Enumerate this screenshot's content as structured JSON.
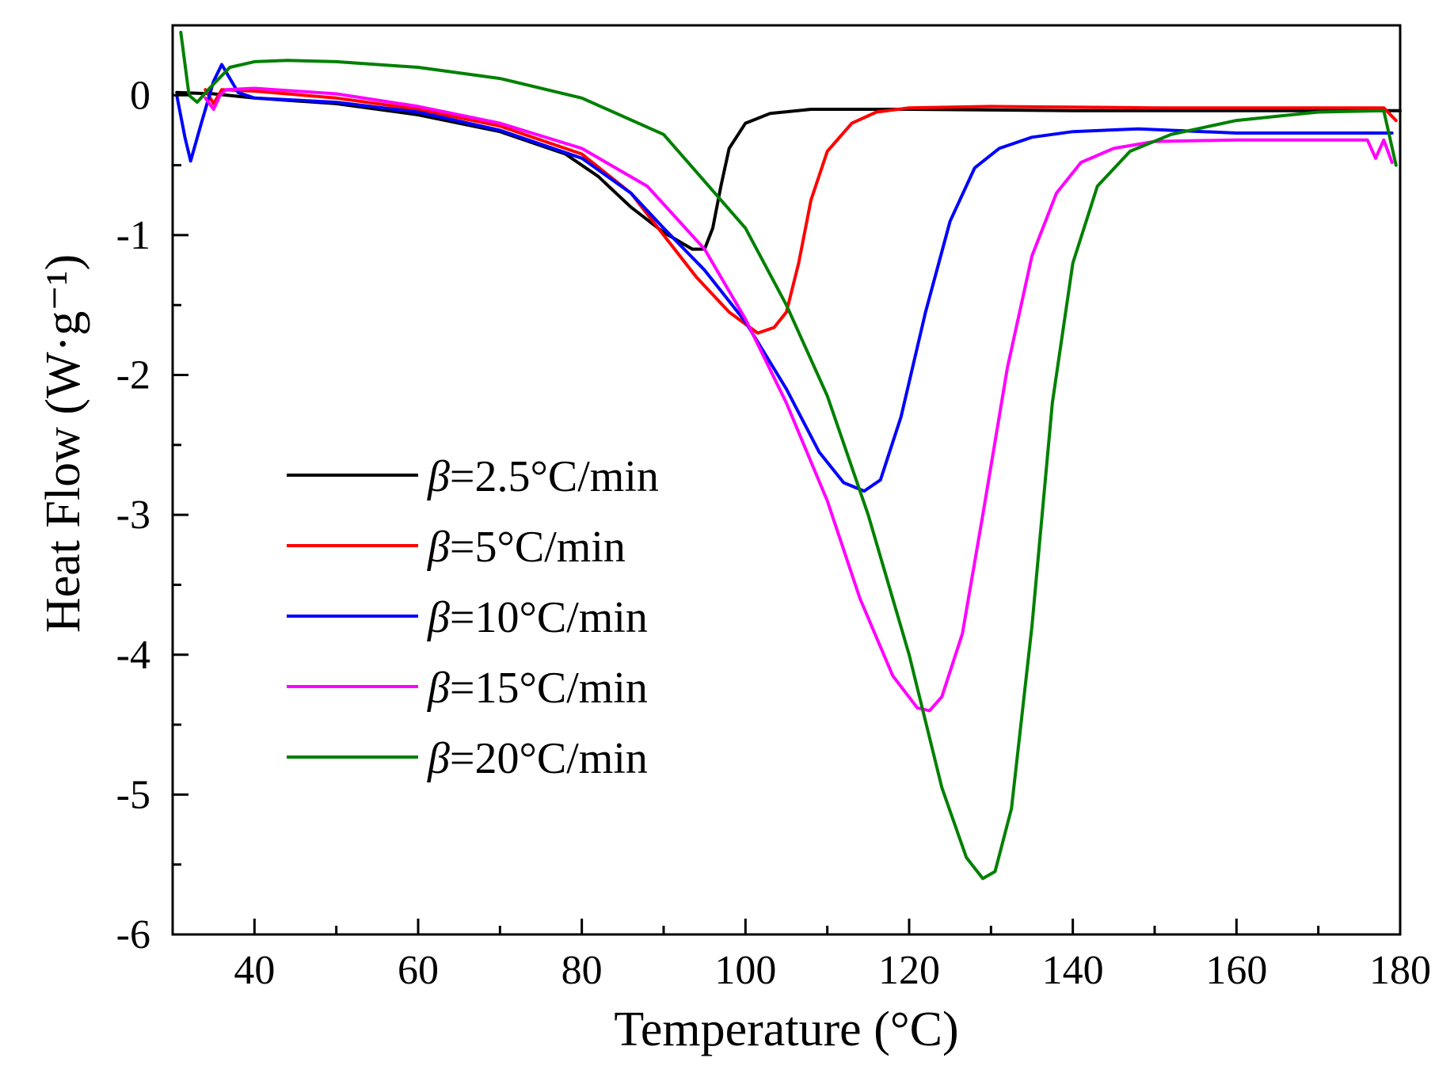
{
  "chart_data": {
    "type": "line",
    "title": "",
    "xlabel": "Temperature (°C)",
    "ylabel": "Heat Flow (W·g⁻¹)",
    "xlim": [
      30,
      180
    ],
    "ylim": [
      -6,
      0.5
    ],
    "xticks": [
      40,
      60,
      80,
      100,
      120,
      140,
      160,
      180
    ],
    "yticks": [
      0,
      -1,
      -2,
      -3,
      -4,
      -5,
      -6
    ],
    "xtick_labels": [
      "40",
      "60",
      "80",
      "100",
      "120",
      "140",
      "160",
      "180"
    ],
    "ytick_labels": [
      "0",
      "-1",
      "-2",
      "-3",
      "-4",
      "-5",
      "-6"
    ],
    "grid": false,
    "legend_position": "center-left",
    "series": [
      {
        "name": "β=2.5°C/min",
        "symbol": "β",
        "label": "=2.5°C/min",
        "color": "#000000",
        "points": [
          [
            30.5,
            0.02
          ],
          [
            35,
            0.01
          ],
          [
            40,
            -0.02
          ],
          [
            50,
            -0.06
          ],
          [
            60,
            -0.14
          ],
          [
            70,
            -0.26
          ],
          [
            78,
            -0.42
          ],
          [
            82,
            -0.58
          ],
          [
            86,
            -0.8
          ],
          [
            90,
            -0.98
          ],
          [
            93.5,
            -1.1
          ],
          [
            95,
            -1.1
          ],
          [
            96,
            -0.95
          ],
          [
            97,
            -0.65
          ],
          [
            98,
            -0.38
          ],
          [
            100,
            -0.2
          ],
          [
            103,
            -0.13
          ],
          [
            108,
            -0.1
          ],
          [
            120,
            -0.1
          ],
          [
            140,
            -0.11
          ],
          [
            180,
            -0.11
          ]
        ]
      },
      {
        "name": "β=5°C/min",
        "symbol": "β",
        "label": "=5°C/min",
        "color": "#ff0000",
        "points": [
          [
            34,
            0.04
          ],
          [
            35,
            -0.06
          ],
          [
            36,
            0.04
          ],
          [
            40,
            0.03
          ],
          [
            50,
            -0.02
          ],
          [
            60,
            -0.1
          ],
          [
            70,
            -0.22
          ],
          [
            80,
            -0.42
          ],
          [
            86,
            -0.7
          ],
          [
            90,
            -1.0
          ],
          [
            94,
            -1.3
          ],
          [
            98,
            -1.55
          ],
          [
            101.5,
            -1.7
          ],
          [
            103.5,
            -1.66
          ],
          [
            105,
            -1.55
          ],
          [
            106.5,
            -1.2
          ],
          [
            108,
            -0.75
          ],
          [
            110,
            -0.4
          ],
          [
            113,
            -0.2
          ],
          [
            116,
            -0.12
          ],
          [
            120,
            -0.09
          ],
          [
            130,
            -0.08
          ],
          [
            150,
            -0.09
          ],
          [
            178,
            -0.09
          ],
          [
            179.5,
            -0.18
          ]
        ]
      },
      {
        "name": "β=10°C/min",
        "symbol": "β",
        "label": "=10°C/min",
        "color": "#0000ff",
        "points": [
          [
            30.5,
            0.0
          ],
          [
            31.5,
            -0.3
          ],
          [
            32.2,
            -0.47
          ],
          [
            33.5,
            -0.2
          ],
          [
            35,
            0.1
          ],
          [
            36,
            0.22
          ],
          [
            37,
            0.12
          ],
          [
            38,
            0.02
          ],
          [
            40,
            -0.02
          ],
          [
            50,
            -0.05
          ],
          [
            60,
            -0.12
          ],
          [
            70,
            -0.25
          ],
          [
            80,
            -0.45
          ],
          [
            86,
            -0.7
          ],
          [
            90,
            -0.95
          ],
          [
            95,
            -1.25
          ],
          [
            100,
            -1.62
          ],
          [
            105,
            -2.1
          ],
          [
            109,
            -2.55
          ],
          [
            112,
            -2.77
          ],
          [
            114.5,
            -2.83
          ],
          [
            116.5,
            -2.75
          ],
          [
            119,
            -2.3
          ],
          [
            122,
            -1.55
          ],
          [
            125,
            -0.9
          ],
          [
            128,
            -0.52
          ],
          [
            131,
            -0.38
          ],
          [
            135,
            -0.3
          ],
          [
            140,
            -0.26
          ],
          [
            148,
            -0.24
          ],
          [
            160,
            -0.27
          ],
          [
            179,
            -0.27
          ]
        ]
      },
      {
        "name": "β=15°C/min",
        "symbol": "β",
        "label": "=15°C/min",
        "color": "#ff00ff",
        "points": [
          [
            34,
            -0.02
          ],
          [
            35,
            -0.1
          ],
          [
            35.8,
            0.0
          ],
          [
            36.5,
            0.04
          ],
          [
            40,
            0.05
          ],
          [
            50,
            0.01
          ],
          [
            60,
            -0.08
          ],
          [
            70,
            -0.2
          ],
          [
            80,
            -0.38
          ],
          [
            88,
            -0.65
          ],
          [
            95,
            -1.1
          ],
          [
            100,
            -1.6
          ],
          [
            105,
            -2.2
          ],
          [
            110,
            -2.9
          ],
          [
            114,
            -3.6
          ],
          [
            118,
            -4.15
          ],
          [
            121,
            -4.38
          ],
          [
            122.5,
            -4.4
          ],
          [
            124,
            -4.3
          ],
          [
            126.5,
            -3.85
          ],
          [
            129,
            -3.0
          ],
          [
            132,
            -1.95
          ],
          [
            135,
            -1.15
          ],
          [
            138,
            -0.7
          ],
          [
            141,
            -0.48
          ],
          [
            145,
            -0.38
          ],
          [
            150,
            -0.33
          ],
          [
            160,
            -0.32
          ],
          [
            176,
            -0.32
          ],
          [
            177,
            -0.45
          ],
          [
            178,
            -0.32
          ],
          [
            179,
            -0.48
          ]
        ]
      },
      {
        "name": "β=20°C/min",
        "symbol": "β",
        "label": "=20°C/min",
        "color": "#008000",
        "points": [
          [
            31,
            0.45
          ],
          [
            32,
            0.0
          ],
          [
            33,
            -0.05
          ],
          [
            34.5,
            0.05
          ],
          [
            37,
            0.2
          ],
          [
            40,
            0.24
          ],
          [
            44,
            0.25
          ],
          [
            50,
            0.24
          ],
          [
            60,
            0.2
          ],
          [
            70,
            0.12
          ],
          [
            80,
            -0.02
          ],
          [
            90,
            -0.28
          ],
          [
            100,
            -0.95
          ],
          [
            105,
            -1.5
          ],
          [
            110,
            -2.15
          ],
          [
            115,
            -3.0
          ],
          [
            120,
            -4.0
          ],
          [
            124,
            -4.95
          ],
          [
            127,
            -5.45
          ],
          [
            129,
            -5.6
          ],
          [
            130.5,
            -5.55
          ],
          [
            132.5,
            -5.1
          ],
          [
            135,
            -3.8
          ],
          [
            137.5,
            -2.2
          ],
          [
            140,
            -1.2
          ],
          [
            143,
            -0.65
          ],
          [
            147,
            -0.4
          ],
          [
            152,
            -0.28
          ],
          [
            160,
            -0.18
          ],
          [
            170,
            -0.12
          ],
          [
            178,
            -0.11
          ],
          [
            179.5,
            -0.5
          ]
        ]
      }
    ]
  }
}
